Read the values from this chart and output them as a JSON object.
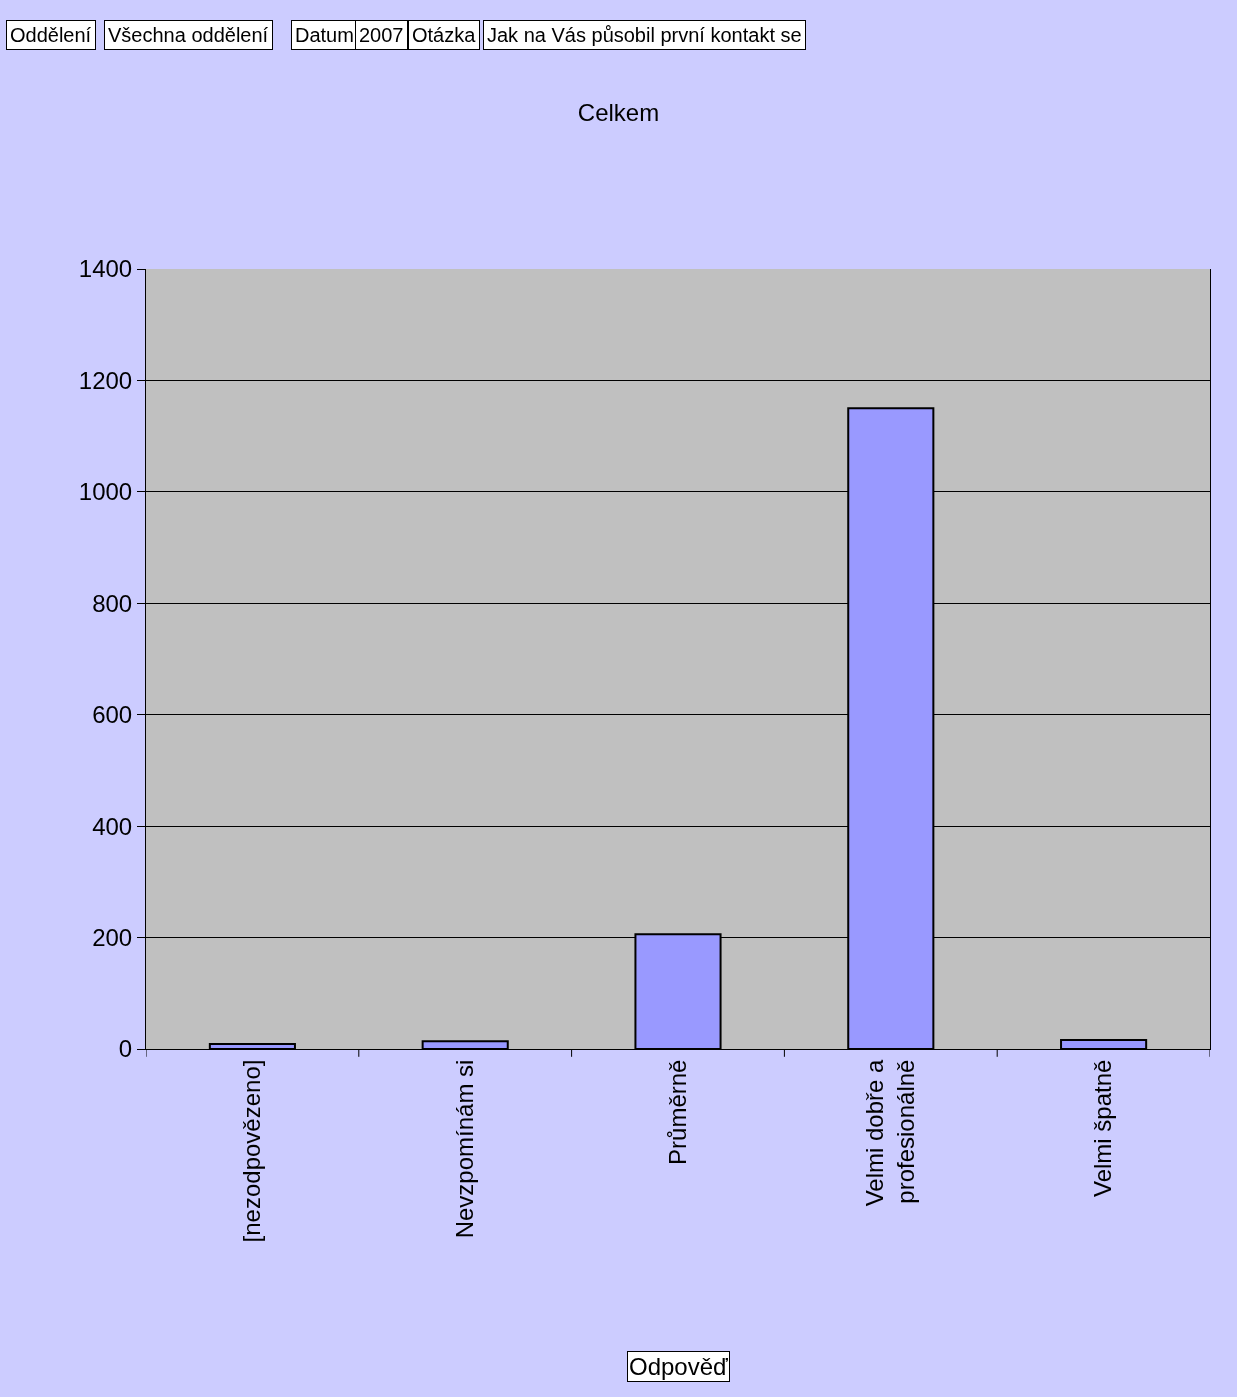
{
  "chart_data": {
    "type": "bar",
    "title": "Celkem",
    "xlabel": "Odpověď",
    "annotations": [
      "Oddělení",
      "Všechna oddělení",
      "Datum",
      "2007",
      "Otázka",
      "Jak na Vás působil první kontakt se"
    ],
    "categories": [
      "[nezodpovězeno]",
      "Nevzpomínám si",
      "Průměrně",
      "Velmi dobře a profesionálně",
      "Velmi špatně"
    ],
    "values": [
      9,
      14,
      206,
      1150,
      16
    ],
    "color": "#9999ff",
    "ylim": [
      0,
      1400
    ],
    "yticks": [
      0,
      200,
      400,
      600,
      800,
      1000,
      1200,
      1400
    ],
    "grid": "y",
    "legend": false
  }
}
